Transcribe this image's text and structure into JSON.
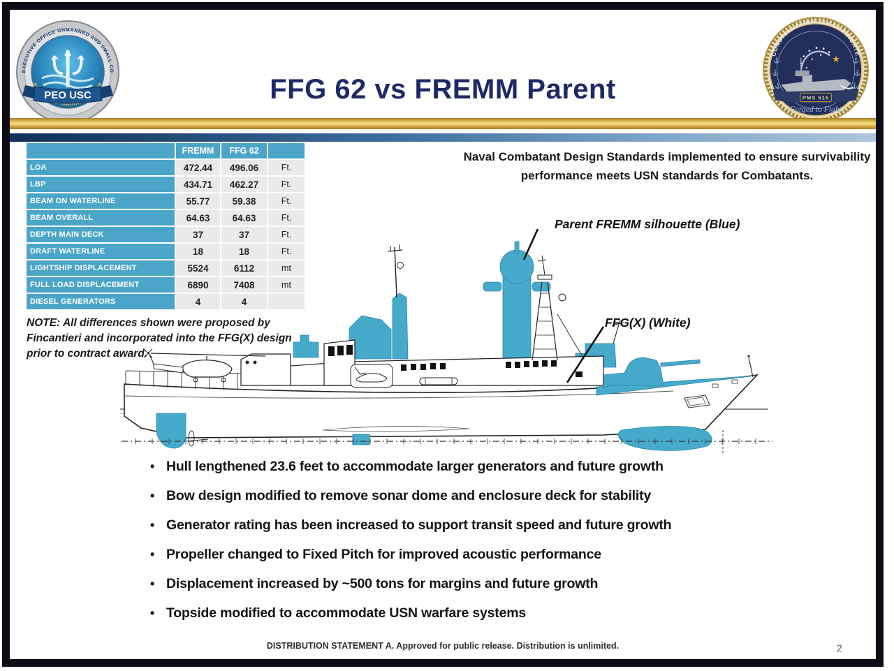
{
  "slide": {
    "title": "FFG 62 vs FREMM Parent",
    "standards_note": "Naval Combatant Design Standards implemented to ensure survivability performance meets USN standards for Combatants.",
    "note": "NOTE: All differences shown were proposed by Fincantieri and incorporated into the FFG(X) design prior to contract award.",
    "footer": "DISTRIBUTION STATEMENT A. Approved for public release. Distribution is unlimited.",
    "page_number": "2"
  },
  "logos": {
    "left": {
      "ring_text": "PROGRAM EXECUTIVE OFFICE UNMANNED AND SMALL COMBATANTS",
      "motto": "ACCELERATE • INNOVATE • DELIVER",
      "banner": "PEO USC"
    },
    "right": {
      "ring_text": "CONSTELLATION CLASS FRIGATE",
      "banner": "PMS 515",
      "motto": "Forged to Fight"
    }
  },
  "table": {
    "columns": [
      "",
      "FREMM",
      "FFG 62",
      ""
    ],
    "rows": [
      {
        "label": "LOA",
        "fremm": "472.44",
        "ffg62": "496.06",
        "unit": "Ft."
      },
      {
        "label": "LBP",
        "fremm": "434.71",
        "ffg62": "462.27",
        "unit": "Ft."
      },
      {
        "label": "BEAM ON WATERLINE",
        "fremm": "55.77",
        "ffg62": "59.38",
        "unit": "Ft."
      },
      {
        "label": "BEAM OVERALL",
        "fremm": "64.63",
        "ffg62": "64.63",
        "unit": "Ft."
      },
      {
        "label": "DEPTH MAIN DECK",
        "fremm": "37",
        "ffg62": "37",
        "unit": "Ft."
      },
      {
        "label": "DRAFT WATERLINE",
        "fremm": "18",
        "ffg62": "18",
        "unit": "Ft."
      },
      {
        "label": "LIGHTSHIP DISPLACEMENT",
        "fremm": "5524",
        "ffg62": "6112",
        "unit": "mt"
      },
      {
        "label": "FULL LOAD DISPLACEMENT",
        "fremm": "6890",
        "ffg62": "7408",
        "unit": "mt"
      },
      {
        "label": "DIESEL GENERATORS",
        "fremm": "4",
        "ffg62": "4",
        "unit": ""
      }
    ]
  },
  "diagram": {
    "fremm_label": "Parent FREMM silhouette (Blue)",
    "ffgx_label": "FFG(X) (White)"
  },
  "bullets": [
    "Hull lengthened 23.6 feet to accommodate larger generators and future growth",
    "Bow design modified to remove sonar dome and enclosure deck for stability",
    "Generator rating has been increased to support transit speed and future growth",
    "Propeller changed to Fixed Pitch for improved acoustic performance",
    "Displacement increased by ~500 tons for margins and future growth",
    "Topside modified to accommodate USN warfare systems"
  ],
  "colors": {
    "ship_blue": "#46AACB",
    "table_blue": "#4BA5C9",
    "title_navy": "#1E2A66",
    "gold_bar": "#D9A733"
  }
}
